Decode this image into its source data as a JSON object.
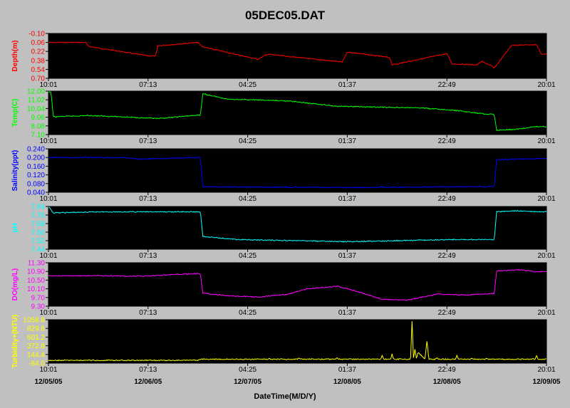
{
  "title": "05DEC05.DAT",
  "xlabel": "DateTime(M/D/Y)",
  "time_labels": [
    "10:01",
    "07:13",
    "04:25",
    "01:37",
    "22:49",
    "20:01"
  ],
  "date_labels": [
    "12/05/05",
    "12/06/05",
    "12/07/05",
    "12/08/05",
    "12/08/05",
    "12/09/05"
  ],
  "chart_data": [
    {
      "type": "line",
      "ylabel": "Depth(m)",
      "color": "#ff0000",
      "inverted": true,
      "ylim": [
        -0.1,
        0.7
      ],
      "yticks": [
        "-0.10",
        "0.06",
        "0.22",
        "0.38",
        "0.54",
        "0.70"
      ],
      "grid": false,
      "x": [
        0,
        7.5,
        8,
        20,
        21.5,
        22,
        30,
        31,
        42,
        44,
        45,
        59,
        60,
        68.5,
        69,
        80,
        81,
        86,
        87,
        88,
        89,
        89.5,
        93,
        98,
        99,
        100
      ],
      "values": [
        0.06,
        0.06,
        0.13,
        0.3,
        0.3,
        0.12,
        0.06,
        0.14,
        0.36,
        0.27,
        0.28,
        0.41,
        0.23,
        0.33,
        0.46,
        0.26,
        0.44,
        0.46,
        0.4,
        0.44,
        0.48,
        0.52,
        0.11,
        0.1,
        0.27,
        0.27
      ]
    },
    {
      "type": "line",
      "ylabel": "Temp(C)",
      "color": "#00ff00",
      "inverted": false,
      "ylim": [
        7.1,
        12.0
      ],
      "yticks": [
        "12.00",
        "11.02",
        "10.04",
        "9.06",
        "8.08",
        "7.10"
      ],
      "grid": false,
      "x": [
        0,
        0.5,
        1,
        8,
        15,
        22,
        30,
        30.5,
        31,
        36,
        48,
        58,
        66,
        75,
        82,
        88,
        89.5,
        90,
        94,
        98,
        100
      ],
      "values": [
        11.9,
        11.9,
        9.1,
        9.25,
        9.1,
        8.9,
        9.3,
        9.3,
        11.7,
        11.1,
        10.9,
        10.3,
        10.2,
        10.1,
        9.8,
        9.4,
        9.4,
        7.6,
        7.7,
        8.0,
        8.0
      ]
    },
    {
      "type": "line",
      "ylabel": "Salinity(ppt)",
      "color": "#0000ff",
      "inverted": false,
      "ylim": [
        0.04,
        0.24
      ],
      "yticks": [
        "0.240",
        "0.200",
        "0.160",
        "0.120",
        "0.080",
        "0.040"
      ],
      "grid": false,
      "x": [
        0,
        15,
        18,
        30,
        30.5,
        31,
        60,
        89,
        89.5,
        90,
        100
      ],
      "values": [
        0.2,
        0.2,
        0.192,
        0.2,
        0.2,
        0.065,
        0.062,
        0.066,
        0.066,
        0.19,
        0.195
      ]
    },
    {
      "type": "line",
      "ylabel": "pH",
      "color": "#00ffff",
      "inverted": false,
      "ylim": [
        7.44,
        7.84
      ],
      "yticks": [
        "7.84",
        "7.76",
        "7.68",
        "7.60",
        "7.52",
        "7.44"
      ],
      "grid": false,
      "x": [
        0,
        1,
        10,
        20,
        30,
        30.5,
        31,
        38,
        50,
        60,
        70,
        80,
        89,
        89.5,
        90,
        94,
        98,
        100
      ],
      "values": [
        7.84,
        7.78,
        7.79,
        7.79,
        7.79,
        7.79,
        7.56,
        7.53,
        7.52,
        7.51,
        7.52,
        7.53,
        7.53,
        7.53,
        7.79,
        7.8,
        7.79,
        7.79
      ]
    },
    {
      "type": "line",
      "ylabel": "DO(mg/L)",
      "color": "#ff00ff",
      "inverted": false,
      "ylim": [
        9.3,
        11.3
      ],
      "yticks": [
        "11.30",
        "10.90",
        "10.50",
        "10.10",
        "9.70",
        "9.30"
      ],
      "grid": false,
      "x": [
        0,
        10,
        20,
        24,
        30,
        30.5,
        31,
        36,
        42,
        48,
        52,
        58,
        62,
        67,
        72,
        78,
        84,
        89,
        89.5,
        90,
        95,
        98,
        100
      ],
      "values": [
        10.7,
        10.7,
        10.68,
        10.75,
        10.8,
        10.8,
        9.9,
        9.78,
        9.72,
        9.85,
        10.1,
        10.22,
        9.98,
        9.62,
        9.58,
        9.85,
        9.82,
        9.88,
        9.88,
        10.92,
        10.98,
        10.88,
        10.9
      ]
    },
    {
      "type": "line",
      "ylabel": "Turbidity+(NTU)",
      "color": "#ffff00",
      "inverted": false,
      "ylim": [
        -84.0,
        1058.8
      ],
      "yticks": [
        "1058.8",
        "829.6",
        "601.2",
        "372.8",
        "144.4",
        "-84.0"
      ],
      "grid": false,
      "x": [
        0,
        30,
        30.5,
        44,
        44.3,
        44.6,
        50,
        50.3,
        50.6,
        57.7,
        58,
        58.3,
        66.7,
        67,
        67.3,
        68.7,
        69,
        69.3,
        72.7,
        73,
        73.3,
        73.6,
        73.9,
        74.2,
        75.6,
        76,
        76.4,
        77.7,
        78,
        78.3,
        81.7,
        82,
        82.3,
        84.7,
        85,
        85.3,
        87.7,
        88,
        88.3,
        97.7,
        98,
        98.3,
        100
      ],
      "values": [
        -10,
        -10,
        20,
        20,
        40,
        20,
        20,
        50,
        20,
        20,
        60,
        20,
        20,
        120,
        20,
        20,
        150,
        20,
        20,
        1010,
        20,
        300,
        20,
        200,
        20,
        500,
        20,
        20,
        50,
        20,
        20,
        120,
        20,
        20,
        40,
        20,
        20,
        50,
        20,
        20,
        110,
        20,
        20
      ]
    }
  ]
}
